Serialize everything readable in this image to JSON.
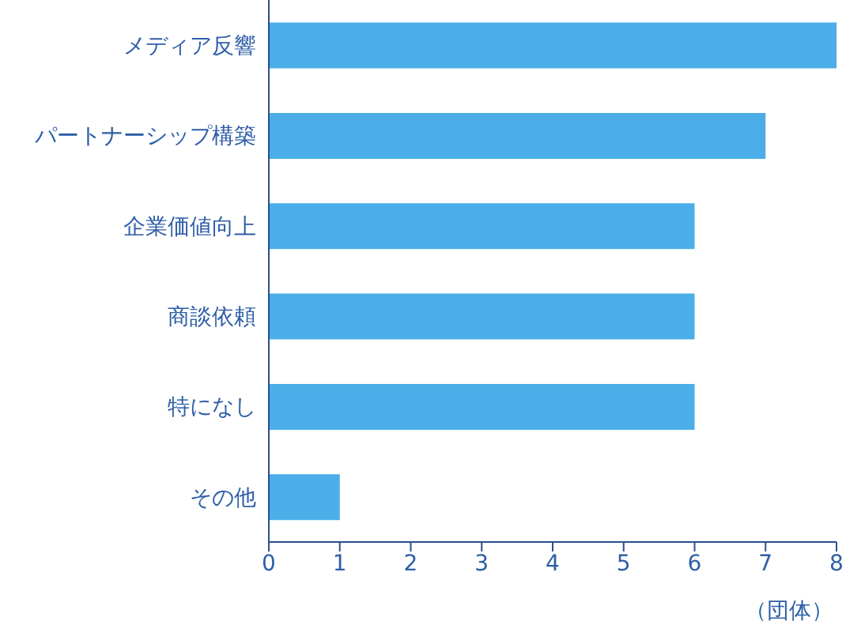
{
  "chart_data": {
    "type": "bar",
    "orientation": "horizontal",
    "categories": [
      "メディア反響",
      "パートナーシップ構築",
      "企業価値向上",
      "商談依頼",
      "特になし",
      "その他"
    ],
    "values": [
      8,
      7,
      6,
      6,
      6,
      1
    ],
    "color": "#4baee8",
    "xlim": [
      0,
      8
    ],
    "xticks": [
      0,
      1,
      2,
      3,
      4,
      5,
      6,
      7,
      8
    ],
    "xlabel": "（団体）",
    "grid": false,
    "legend": false
  }
}
